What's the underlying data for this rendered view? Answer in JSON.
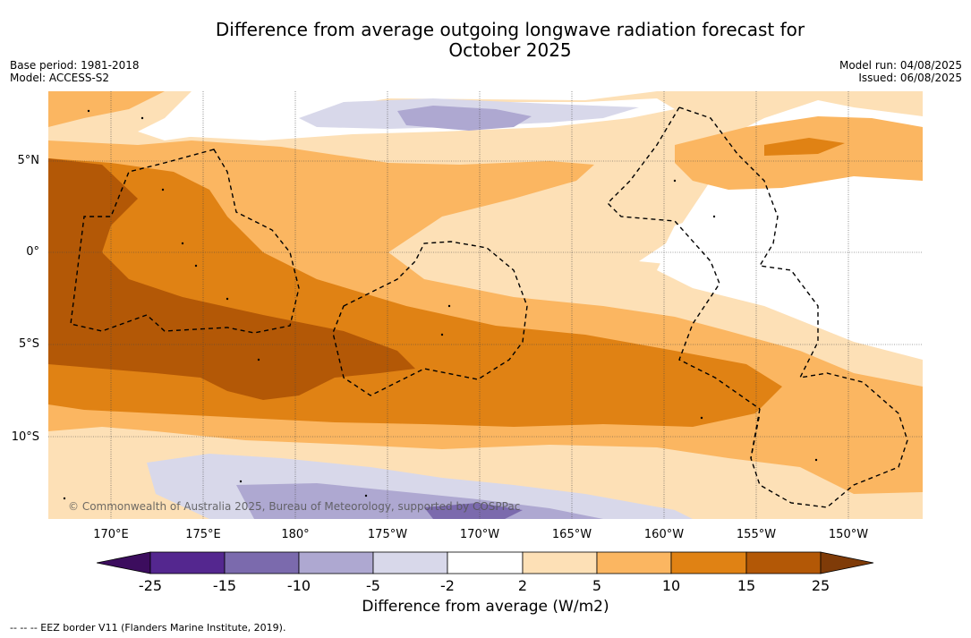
{
  "title_line1": "Difference from average outgoing longwave radiation forecast for",
  "title_line2": "October 2025",
  "base_period": "Base period: 1981-2018",
  "model": "Model: ACCESS-S2",
  "model_run": "Model run: 04/08/2025",
  "issued": "Issued: 06/08/2025",
  "lat_labels": [
    "5°N",
    "0°",
    "5°S",
    "10°S"
  ],
  "lon_labels": [
    "170°E",
    "175°E",
    "180°",
    "175°W",
    "170°W",
    "165°W",
    "160°W",
    "155°W",
    "150°W"
  ],
  "copyright": "© Commonwealth of Australia 2025, Bureau of Meteorology, supported by COSPPac",
  "colorbar": {
    "label": "Difference from average (W/m2)",
    "ticks": [
      "-25",
      "-15",
      "-10",
      "-5",
      "-2",
      "2",
      "5",
      "10",
      "15",
      "25"
    ],
    "colors": [
      "#3c0d5e",
      "#54278f",
      "#7b6aad",
      "#aea8d1",
      "#d8d8ea",
      "#ffffff",
      "#fde0b6",
      "#fbb661",
      "#e08214",
      "#b35806",
      "#7f3b08"
    ]
  },
  "footnote": "-- -- -- EEZ border V11 (Flanders Marine Institute, 2019)."
}
